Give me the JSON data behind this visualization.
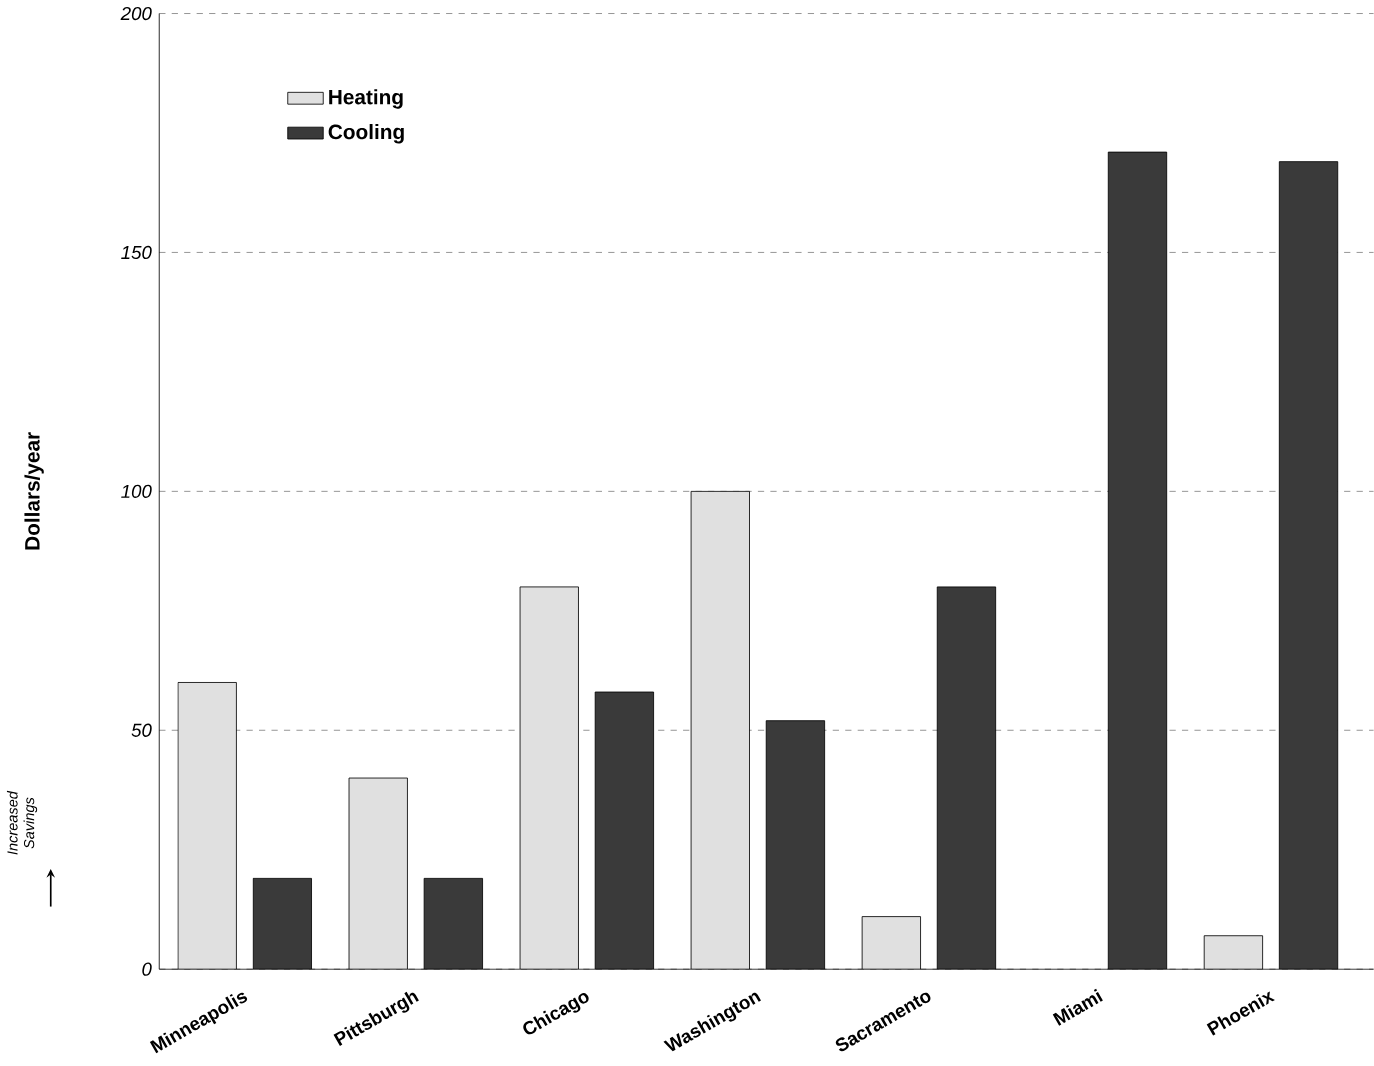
{
  "chart_data": {
    "type": "bar",
    "ylabel": "Dollars/year",
    "categories": [
      "Minneapolis",
      "Pittsburgh",
      "Chicago",
      "Washington",
      "Sacramento",
      "Miami",
      "Phoenix"
    ],
    "series": [
      {
        "name": "Heating",
        "color": "#e0e0e0",
        "values": [
          60,
          40,
          80,
          100,
          11,
          null,
          7
        ]
      },
      {
        "name": "Cooling",
        "color": "#3a3a3a",
        "values": [
          19,
          19,
          58,
          52,
          80,
          171,
          169
        ]
      }
    ],
    "ylim": [
      0,
      200
    ],
    "yticks": [
      0,
      50,
      100,
      150,
      200
    ],
    "grid": "y",
    "legend": "top left",
    "annotations": [
      "Increased Savings"
    ]
  }
}
